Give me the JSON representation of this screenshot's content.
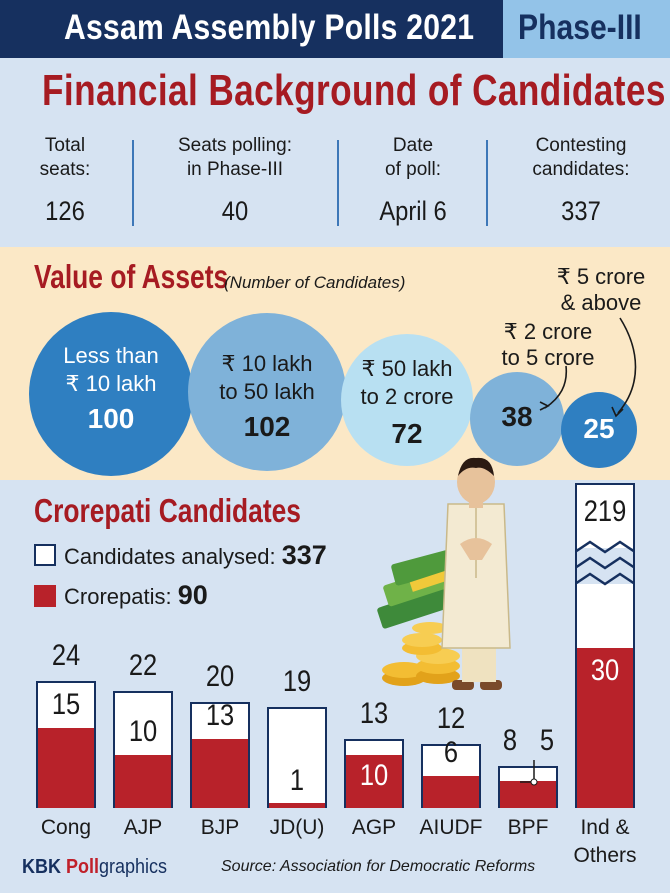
{
  "header": {
    "title": "Assam Assembly Polls 2021",
    "phase": "Phase-III"
  },
  "main_title": "Financial Background of Candidates",
  "stats": [
    {
      "label": "Total\nseats:",
      "value": "126"
    },
    {
      "label": "Seats polling:\nin Phase-III",
      "value": "40"
    },
    {
      "label": "Date\nof poll:",
      "value": "April 6"
    },
    {
      "label": "Contesting\ncandidates:",
      "value": "337"
    }
  ],
  "assets": {
    "title": "Value of Assets",
    "subtitle": "(Number of Candidates)",
    "bubbles": [
      {
        "label": "Less than\n₹ 10 lakh",
        "count": "100",
        "color": "#2f7fc1"
      },
      {
        "label": "₹ 10 lakh\nto 50 lakh",
        "count": "102",
        "color": "#7fb2d9"
      },
      {
        "label": "₹ 50 lakh\nto 2 crore",
        "count": "72",
        "color": "#b8e0f2"
      },
      {
        "label": "₹ 2 crore\nto 5 crore",
        "count": "38",
        "color": "#7fb2d9"
      },
      {
        "label": "₹ 5 crore\n& above",
        "count": "25",
        "color": "#2f7fc1"
      }
    ]
  },
  "crorepati": {
    "title": "Crorepati Candidates",
    "legend": {
      "analysed_label": "Candidates analysed:",
      "analysed_value": "337",
      "crorepatis_label": "Crorepatis:",
      "crorepatis_value": "90"
    }
  },
  "colors": {
    "navy": "#16305f",
    "accent_red": "#a61b22",
    "bar_red": "#b8222a",
    "light_blue_bg": "#d6e3f2",
    "cream_bg": "#fbe8c6"
  },
  "chart_data": [
    {
      "type": "bubble",
      "title": "Value of Assets",
      "subtitle": "(Number of Candidates)",
      "categories": [
        "Less than ₹ 10 lakh",
        "₹ 10 lakh to 50 lakh",
        "₹ 50 lakh to 2 crore",
        "₹ 2 crore to 5 crore",
        "₹ 5 crore & above"
      ],
      "values": [
        100,
        102,
        72,
        38,
        25
      ]
    },
    {
      "type": "bar",
      "title": "Crorepati Candidates",
      "categories": [
        "Cong",
        "AJP",
        "BJP",
        "JD(U)",
        "AGP",
        "AIUDF",
        "BPF",
        "Ind & Others"
      ],
      "series": [
        {
          "name": "Candidates analysed",
          "values": [
            24,
            22,
            20,
            19,
            13,
            12,
            8,
            219
          ]
        },
        {
          "name": "Crorepatis",
          "values": [
            15,
            10,
            13,
            1,
            10,
            6,
            5,
            30
          ]
        }
      ],
      "axis_break": "Ind & Others"
    }
  ],
  "footer": {
    "brand_a": "KBK ",
    "brand_b": "Poll",
    "brand_c": "graphics",
    "source": "Source: Association for Democratic Reforms"
  }
}
